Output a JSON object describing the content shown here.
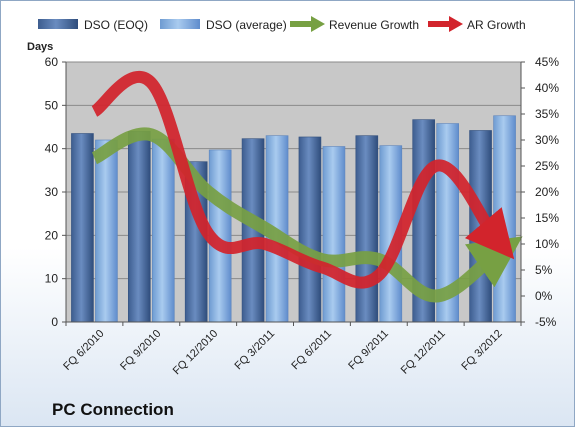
{
  "colors": {
    "dso_eoq": "#4f6fa0",
    "dso_avg": "#8fb8e6",
    "revenue": "#77a043",
    "ar": "#d2242c",
    "plot_bg": "#c8c8c8"
  },
  "chart_data": {
    "type": "bar",
    "title": "PC Connection",
    "ylabel": "Days",
    "ylim": [
      0,
      60
    ],
    "y_ticks": [
      0,
      10,
      20,
      30,
      40,
      50,
      60
    ],
    "y2lim": [
      -5,
      45
    ],
    "y2_ticks": [
      "-5%",
      "0%",
      "5%",
      "10%",
      "15%",
      "20%",
      "25%",
      "30%",
      "35%",
      "40%",
      "45%"
    ],
    "y2_values": [
      -5,
      0,
      5,
      10,
      15,
      20,
      25,
      30,
      35,
      40,
      45
    ],
    "legend_position": "top",
    "grid": true,
    "categories": [
      "FQ 6/2010",
      "FQ 9/2010",
      "FQ 12/2010",
      "FQ 3/2011",
      "FQ 6/2011",
      "FQ 9/2011",
      "FQ 12/2011",
      "FQ 3/2012"
    ],
    "series": [
      {
        "name": "DSO (EOQ)",
        "type": "bar",
        "axis": "left",
        "values": [
          43.5,
          44.0,
          37.0,
          42.3,
          42.7,
          43.0,
          46.7,
          44.2
        ]
      },
      {
        "name": "DSO (average)",
        "type": "bar",
        "axis": "left",
        "values": [
          42.0,
          42.2,
          39.7,
          43.0,
          40.5,
          40.7,
          45.8,
          47.6
        ]
      },
      {
        "name": "Revenue Growth",
        "type": "line",
        "axis": "right",
        "values": [
          26.5,
          31.0,
          20.0,
          13.0,
          7.0,
          7.0,
          0.0,
          7.5
        ]
      },
      {
        "name": "AR Growth",
        "type": "line",
        "axis": "right",
        "values": [
          35.5,
          41.0,
          12.0,
          10.0,
          5.5,
          4.0,
          25.0,
          12.0
        ]
      }
    ]
  }
}
